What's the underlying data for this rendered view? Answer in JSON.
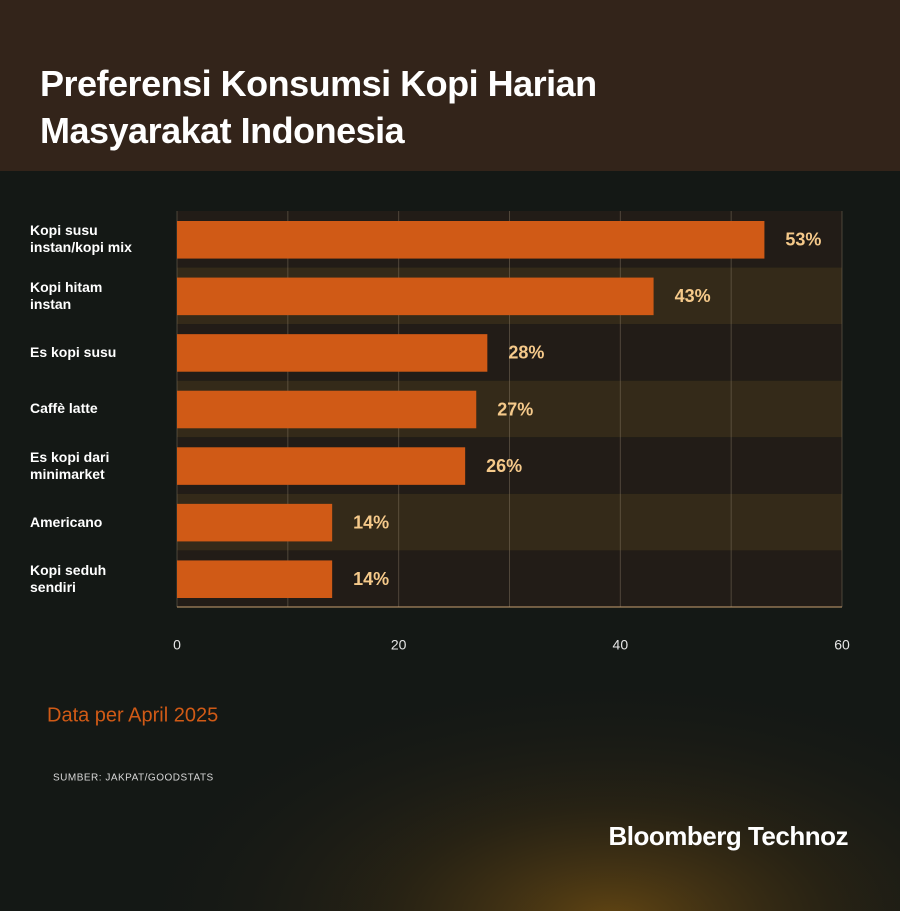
{
  "chart_data": {
    "type": "bar",
    "orientation": "horizontal",
    "title": "Preferensi Konsumsi Kopi Harian Masyarakat Indonesia",
    "categories": [
      "Kopi susu instan/kopi mix",
      "Kopi hitam instan",
      "Es kopi susu",
      "Caffè latte",
      "Es kopi dari minimarket",
      "Americano",
      "Kopi seduh sendiri"
    ],
    "values": [
      53,
      43,
      28,
      27,
      26,
      14,
      14
    ],
    "value_labels": [
      "53%",
      "43%",
      "28%",
      "27%",
      "26%",
      "14%",
      "14%"
    ],
    "color": "#d05a16",
    "xlim": [
      0,
      60
    ],
    "xticks": [
      0,
      20,
      40,
      60
    ],
    "minor_xticks": [
      10,
      30,
      50
    ],
    "grid": true,
    "note": "Data per April 2025",
    "source": "SUMBER: JAKPAT/GOODSTATS",
    "brand": "Bloomberg Technoz"
  }
}
